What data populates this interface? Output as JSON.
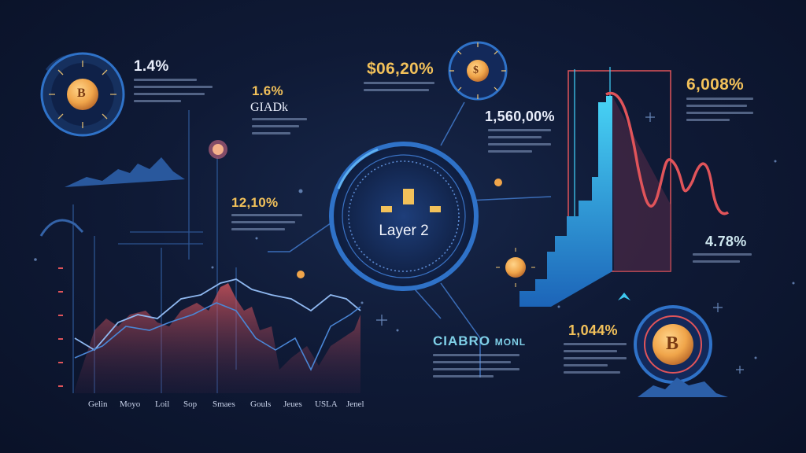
{
  "stats": {
    "top_left_pct": "1.4%",
    "mid_left_pct": "1.6%",
    "mid_left_sub": "GIADk",
    "mid_pct": "12,10%",
    "top_center_pct": "$06,20%",
    "center_pct": "1,560,00%",
    "top_right_pct": "6,008%",
    "right_pct": "4.78%",
    "bottom_right_pct": "1,044%"
  },
  "center_dial": {
    "label": "Layer 2"
  },
  "bottom_title": {
    "part1": "CIABRO",
    "part2": "MONL"
  },
  "coins": {
    "coin_symbol": "B",
    "small_symbol": "$"
  },
  "x_axis": [
    "Gelin",
    "Moyo",
    "Loil",
    "Sop",
    "Smaes",
    "Gouls",
    "Jeues",
    "USLA",
    "Jenel"
  ],
  "colors": {
    "background": "#0f1a36",
    "accent_blue": "#2f8ee0",
    "accent_red": "#e0545a",
    "accent_cyan": "#3ec8f0",
    "gold": "#f2c15a"
  }
}
